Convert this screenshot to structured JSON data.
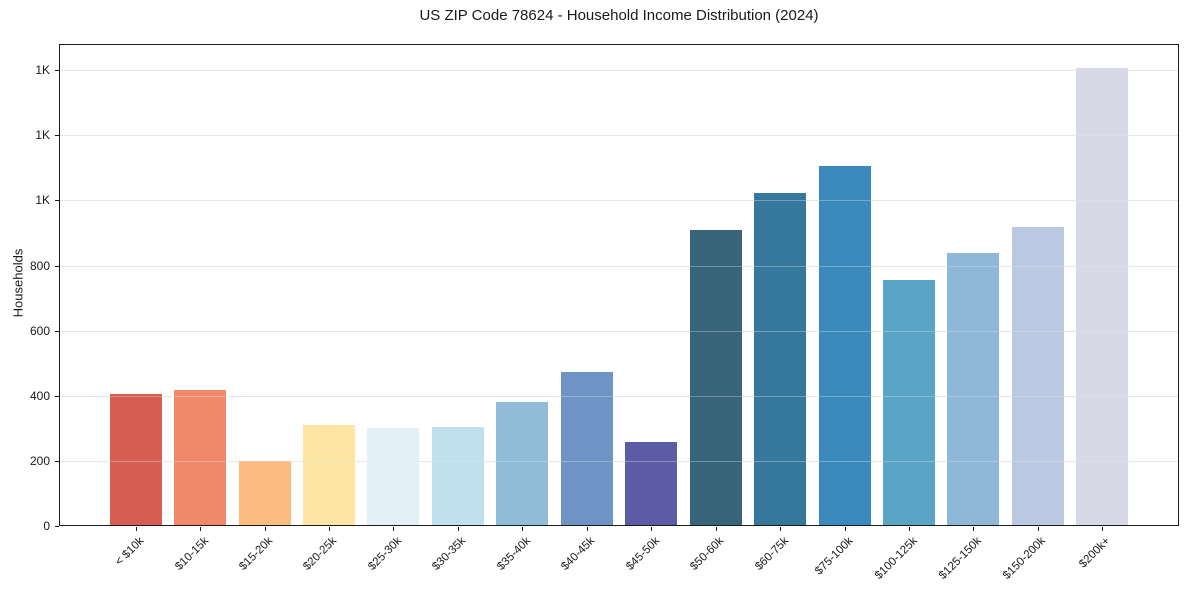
{
  "figure": {
    "title": "US ZIP Code 78624 - Household Income Distribution (2024)",
    "y_axis_label": "Households"
  },
  "chart_data": {
    "type": "bar",
    "title": "US ZIP Code 78624 - Household Income Distribution (2024)",
    "xlabel": "",
    "ylabel": "Households",
    "categories": [
      "< $10k",
      "$10-15k",
      "$15-20k",
      "$20-25k",
      "$25-30k",
      "$30-35k",
      "$35-40k",
      "$40-45k",
      "$45-50k",
      "$50-60k",
      "$60-75k",
      "$75-100k",
      "$100-125k",
      "$125-150k",
      "$150-200k",
      "$200k+"
    ],
    "values": [
      405,
      418,
      200,
      310,
      300,
      304,
      381,
      474,
      259,
      910,
      1022,
      1105,
      755,
      837,
      917,
      1405
    ],
    "bar_colors": [
      "#d65d51",
      "#f1886a",
      "#fbbc7f",
      "#fde5a3",
      "#e3f0f7",
      "#bfe0ec",
      "#90bcd8",
      "#6e94c6",
      "#5c5ba6",
      "#38647a",
      "#35789c",
      "#3a8abd",
      "#5aa4c6",
      "#8fb7d8",
      "#bac8e1",
      "#d7d9e7"
    ],
    "ylim": [
      0,
      1480
    ],
    "yticks": [
      {
        "value": 0,
        "label": "0"
      },
      {
        "value": 200,
        "label": "200"
      },
      {
        "value": 400,
        "label": "400"
      },
      {
        "value": 600,
        "label": "600"
      },
      {
        "value": 800,
        "label": "800"
      },
      {
        "value": 1000,
        "label": "1K"
      },
      {
        "value": 1200,
        "label": "1K"
      },
      {
        "value": 1400,
        "label": "1K"
      }
    ],
    "grid": "horizontal-only",
    "legend": "none",
    "x_tick_rotation_deg": 45,
    "colors": {
      "background": "#ffffff",
      "grid": "#e7e7e7",
      "grid_over_bars": "rgba(232,232,232,0.35)",
      "spine": "#1a1a1a",
      "text": "#1a1a1a"
    }
  }
}
